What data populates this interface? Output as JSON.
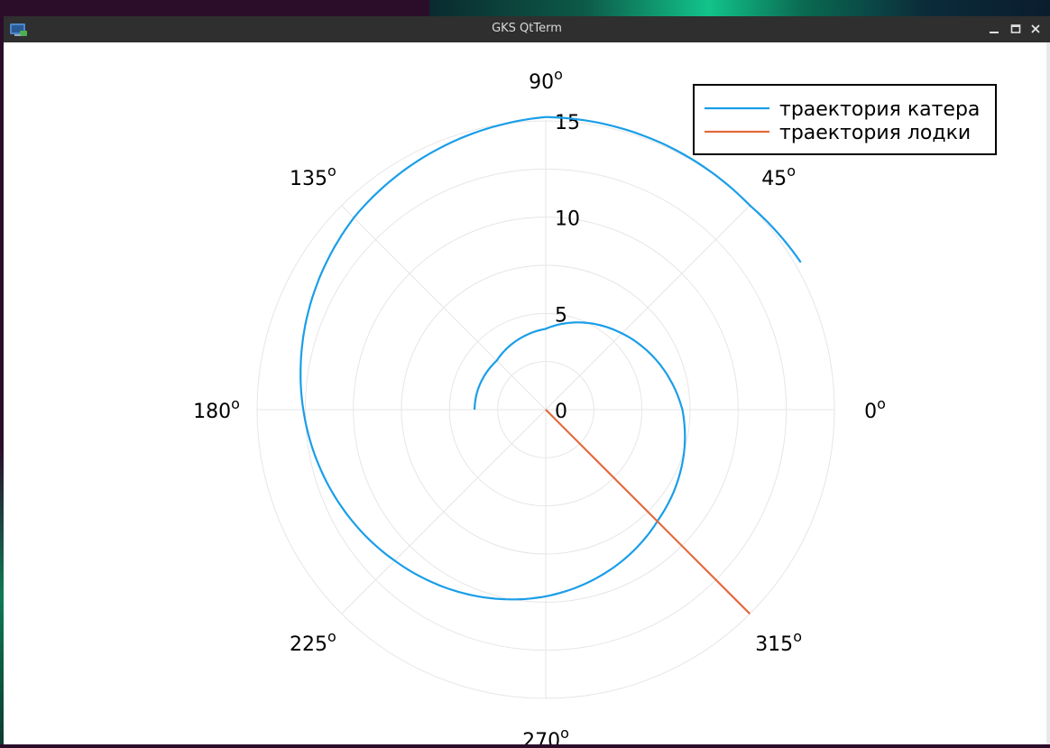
{
  "window": {
    "title": "GKS QtTerm"
  },
  "icons": {
    "app": "gks-qtterm-icon",
    "minimize": "minimize-icon",
    "maximize": "maximize-icon",
    "close": "close-icon"
  },
  "colors": {
    "series_boat": "#1a9ee8",
    "series_launch": "#e36a3d",
    "grid": "#e6e6e6",
    "titlebar": "#2f2f2f"
  },
  "chart_data": {
    "type": "polar-line",
    "radial_ticks": [
      0,
      5,
      10,
      15
    ],
    "radial_tick_labels": [
      "0",
      "5",
      "10",
      "15"
    ],
    "angle_ticks_deg": [
      0,
      45,
      90,
      135,
      180,
      225,
      270,
      315
    ],
    "angle_tick_labels": [
      "0",
      "45",
      "90",
      "135",
      "180",
      "225",
      "270",
      "315"
    ],
    "degree_mark": "o",
    "rlim": [
      0,
      15
    ],
    "grid": true,
    "legend_position": "top-right",
    "series": [
      {
        "name": "траектория катера",
        "color": "#1a9ee8",
        "kind": "log-spiral",
        "theta_deg": [
          180,
          165,
          135,
          90,
          45,
          0,
          -45,
          -90,
          -135,
          -180,
          -225,
          -270,
          -315,
          -330
        ],
        "r": [
          3.7,
          3.68,
          3.6,
          4.2,
          5.6,
          7.1,
          8.2,
          9.7,
          11.1,
          12.6,
          14.1,
          15.2,
          15.0,
          15.3
        ]
      },
      {
        "name": "траектория лодки",
        "color": "#e36a3d",
        "kind": "ray",
        "theta_deg": [
          -45,
          -45
        ],
        "r": [
          0,
          15
        ]
      }
    ]
  }
}
